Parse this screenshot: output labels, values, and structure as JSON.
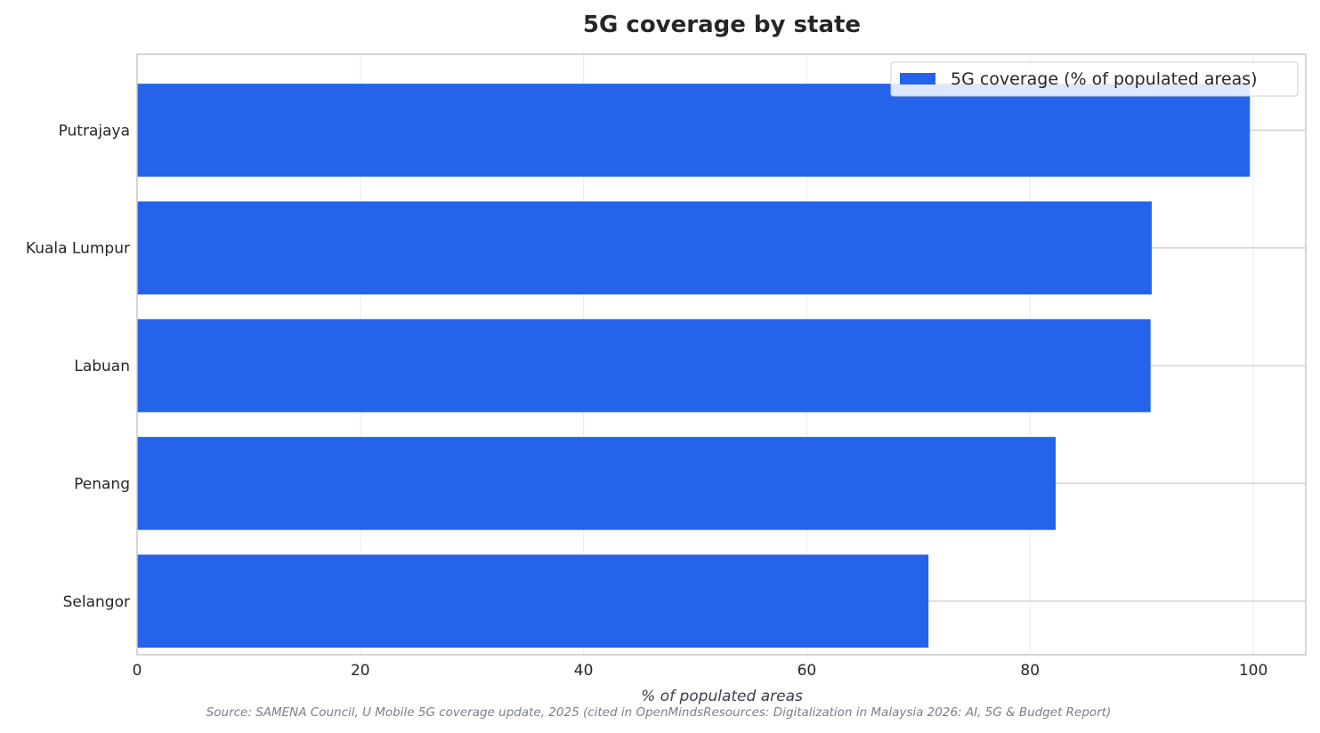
{
  "chart_data": {
    "type": "bar",
    "orientation": "horizontal",
    "title": "5G coverage by state",
    "xlabel": "% of populated areas",
    "ylabel": "",
    "categories": [
      "Putrajaya",
      "Kuala Lumpur",
      "Labuan",
      "Penang",
      "Selangor"
    ],
    "series": [
      {
        "name": "5G coverage (% of populated areas)",
        "values": [
          99.7,
          90.9,
          90.8,
          82.3,
          70.9
        ],
        "color": "#2563eb"
      }
    ],
    "xlim": [
      0,
      104.7
    ],
    "xticks": [
      0,
      20,
      40,
      60,
      80,
      100
    ],
    "xtick_labels": [
      "0",
      "20",
      "40",
      "60",
      "80",
      "100"
    ],
    "grid": true,
    "legend_position": "top-right",
    "source": "Source: SAMENA Council, U Mobile 5G coverage update, 2025 (cited in OpenMindsResources: Digitalization in Malaysia 2026: AI, 5G & Budget Report)"
  }
}
